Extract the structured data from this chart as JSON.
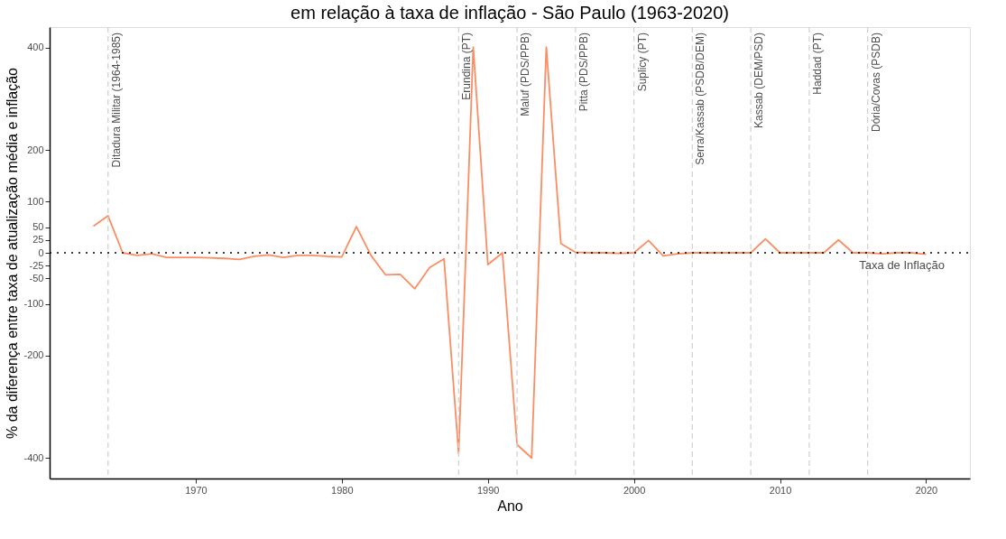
{
  "chart_data": {
    "type": "line",
    "title": "em relação à taxa de inflação - São Paulo (1963-2020)",
    "xlabel": "Ano",
    "ylabel": "% da diferença entre taxa de atualização média e inflação",
    "x": [
      1963,
      1964,
      1965,
      1966,
      1967,
      1968,
      1969,
      1970,
      1971,
      1972,
      1973,
      1974,
      1975,
      1976,
      1977,
      1978,
      1979,
      1980,
      1981,
      1982,
      1983,
      1984,
      1985,
      1986,
      1987,
      1988,
      1989,
      1990,
      1991,
      1992,
      1993,
      1994,
      1995,
      1996,
      1997,
      1998,
      1999,
      2000,
      2001,
      2002,
      2003,
      2004,
      2005,
      2006,
      2007,
      2008,
      2009,
      2010,
      2011,
      2012,
      2013,
      2014,
      2015,
      2016,
      2017,
      2018,
      2019,
      2020
    ],
    "series": [
      {
        "color": "#fc8d62",
        "values": [
          52,
          72,
          0,
          -5,
          -2,
          -9,
          -9,
          -9,
          -10,
          -11,
          -13,
          -7,
          -4,
          -9,
          -5,
          -5,
          -7,
          -8,
          51,
          -5,
          -43,
          -42,
          -70,
          -29,
          -12,
          -391,
          401,
          -23,
          0,
          -374,
          -400,
          401,
          18,
          1,
          0,
          0,
          -1,
          0,
          24,
          -6,
          -2,
          0,
          0,
          0,
          0,
          0,
          27,
          0,
          0,
          0,
          0,
          25,
          0,
          0,
          -2,
          0,
          0,
          -3
        ]
      }
    ],
    "xlim": [
      1960,
      2023
    ],
    "xticks": [
      1970,
      1980,
      1990,
      2000,
      2010,
      2020
    ],
    "ylim": [
      -440,
      440
    ],
    "yticks": [
      -400,
      -200,
      -100,
      -50,
      -25,
      0,
      25,
      50,
      100,
      200,
      400
    ],
    "grid": false,
    "line_style": "solid",
    "marker": "none",
    "ref_lines": [
      {
        "axis": "x",
        "value": 1964,
        "label": "Ditadura Militar (1964-1985)",
        "color": "#d3d3d3",
        "line_style": "dashed"
      },
      {
        "axis": "x",
        "value": 1988,
        "label": "Erundina (PT)",
        "color": "#d3d3d3",
        "line_style": "dashed"
      },
      {
        "axis": "x",
        "value": 1992,
        "label": "Maluf (PDS/PPB)",
        "color": "#d3d3d3",
        "line_style": "dashed"
      },
      {
        "axis": "x",
        "value": 1996,
        "label": "Pitta (PDS/PPB)",
        "color": "#d3d3d3",
        "line_style": "dashed"
      },
      {
        "axis": "x",
        "value": 2000,
        "label": "Suplicy (PT)",
        "color": "#d3d3d3",
        "line_style": "dashed"
      },
      {
        "axis": "x",
        "value": 2004,
        "label": "Serra/Kassab (PSDB/DEM)",
        "color": "#d3d3d3",
        "line_style": "dashed"
      },
      {
        "axis": "x",
        "value": 2008,
        "label": "Kassab (DEM/PSD)",
        "color": "#d3d3d3",
        "line_style": "dashed"
      },
      {
        "axis": "x",
        "value": 2012,
        "label": "Haddad (PT)",
        "color": "#d3d3d3",
        "line_style": "dashed"
      },
      {
        "axis": "x",
        "value": 2016,
        "label": "Dória/Covas (PSDB)",
        "color": "#d3d3d3",
        "line_style": "dashed"
      },
      {
        "axis": "y",
        "value": 0,
        "label": "Taxa de Inflação",
        "color": "#000000",
        "line_style": "dotted"
      }
    ]
  }
}
